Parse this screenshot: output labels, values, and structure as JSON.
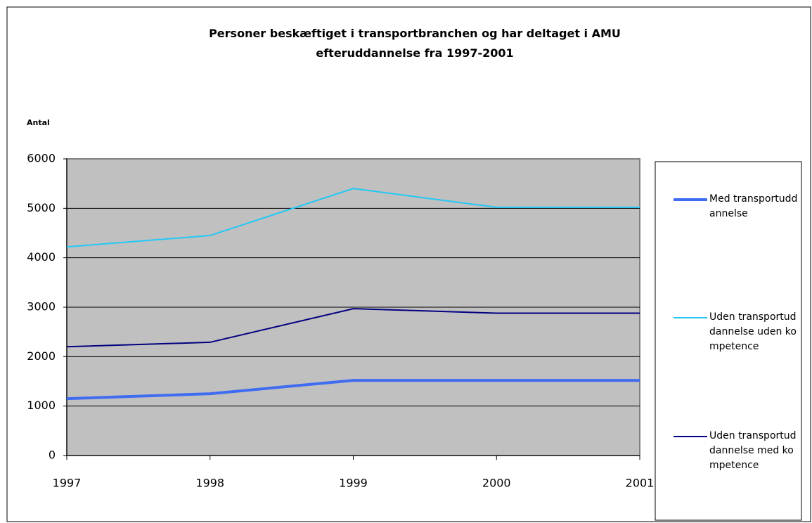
{
  "chart_data": {
    "type": "line",
    "title": "Personer beskæftiget i transportbranchen og har deltaget i AMU efteruddannelse fra 1997-2001",
    "y_label": "Antal",
    "x": [
      1997,
      1998,
      1999,
      2000,
      2001
    ],
    "xlim": [
      1997,
      2001
    ],
    "xticks": [
      1997,
      1998,
      1999,
      2000,
      2001
    ],
    "ylim": [
      0,
      6000
    ],
    "yticks": [
      0,
      1000,
      2000,
      3000,
      4000,
      5000,
      6000
    ],
    "grid": true,
    "legend": "right",
    "series": [
      {
        "name": "Med transportuddannelse",
        "color": "#3f6cf0",
        "width": 4,
        "values": [
          1150,
          1250,
          1520,
          1520,
          1520
        ]
      },
      {
        "name": "Uden transportuddannelse uden kompetence",
        "color": "#22c8f5",
        "width": 2,
        "values": [
          4220,
          4450,
          5400,
          5020,
          5020
        ]
      },
      {
        "name": "Uden transportuddannelse med kompetence",
        "color": "#000080",
        "width": 2,
        "values": [
          2200,
          2290,
          2970,
          2880,
          2880
        ]
      }
    ]
  }
}
